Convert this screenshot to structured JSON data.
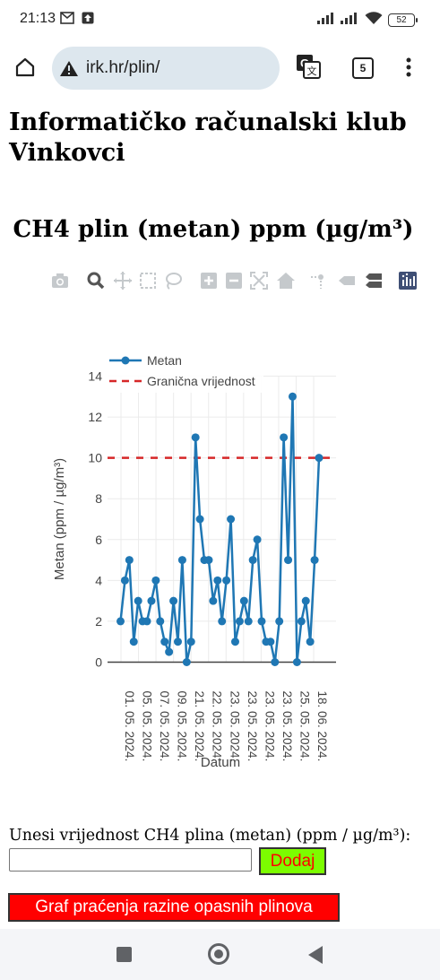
{
  "status_bar": {
    "time": "21:13",
    "battery": "52"
  },
  "browser": {
    "url": "irk.hr/plin/",
    "tab_count": "5"
  },
  "page": {
    "site_title": "Informatičko računalski klub Vinkovci",
    "chart_heading": "CH4 plin (metan) ppm (µg/m³)",
    "input_label": "Unesi vrijednost CH4 plina (metan) (ppm / µg/m³):",
    "input_value": "",
    "add_button": "Dodaj",
    "graph_button": "Graf praćenja razine opasnih plinova"
  },
  "colors": {
    "series": "#1f77b4",
    "limit_line": "#d62728",
    "add_button_bg": "#7cfc00",
    "add_button_text": "#ff0000",
    "graph_button_bg": "#ff0000"
  },
  "chart_data": {
    "type": "line",
    "xlabel": "Datum",
    "ylabel": "Metan (ppm / µg/m³)",
    "ylim": [
      0,
      14
    ],
    "yticks": [
      "0",
      "2",
      "4",
      "6",
      "8",
      "10",
      "12",
      "14"
    ],
    "x_tick_labels": [
      "01. 05. 2024.",
      "05. 05. 2024.",
      "07. 05. 2024.",
      "09. 05. 2024.",
      "21. 05. 2024.",
      "22. 05. 2024.",
      "23. 05. 2024.",
      "23. 05. 2024.",
      "23. 05. 2024.",
      "23. 05. 2024.",
      "25. 05. 2024.",
      "18. 06. 2024."
    ],
    "legend_position": "top-left",
    "grid": true,
    "series": [
      {
        "name": "Metan",
        "style": "lines+markers",
        "values": [
          2,
          4,
          5,
          1,
          3,
          2,
          2,
          3,
          4,
          2,
          1,
          0.5,
          3,
          1,
          5,
          0,
          1,
          11,
          7,
          5,
          5,
          3,
          4,
          2,
          4,
          7,
          1,
          2,
          3,
          2,
          5,
          6,
          2,
          1,
          1,
          0,
          2,
          11,
          5,
          13,
          0,
          2,
          3,
          1,
          5,
          10
        ]
      },
      {
        "name": "Granična vrijednost",
        "style": "dashed",
        "value": 10
      }
    ]
  }
}
